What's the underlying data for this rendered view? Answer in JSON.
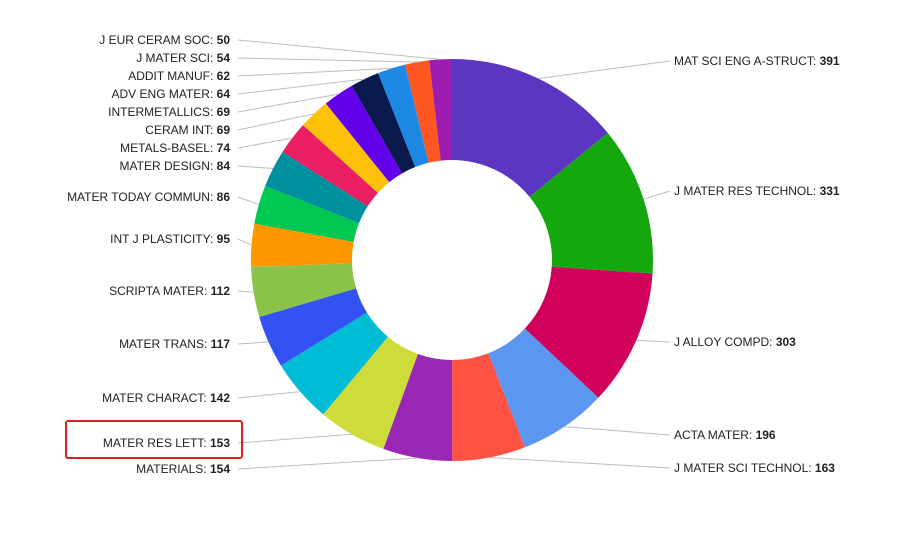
{
  "chart_data": {
    "type": "pie",
    "style": "donut",
    "categories": [
      "MAT SCI ENG A-STRUCT",
      "J MATER RES TECHNOL",
      "J ALLOY COMPD",
      "ACTA MATER",
      "J MATER SCI TECHNOL",
      "MATERIALS",
      "MATER RES LETT",
      "MATER CHARACT",
      "MATER TRANS",
      "SCRIPTA MATER",
      "INT J PLASTICITY",
      "MATER TODAY COMMUN",
      "MATER DESIGN",
      "METALS-BASEL",
      "CERAM INT",
      "INTERMETALLICS",
      "ADV ENG MATER",
      "ADDIT MANUF",
      "J MATER SCI",
      "J EUR CERAM SOC"
    ],
    "values": [
      391,
      331,
      303,
      196,
      163,
      154,
      153,
      142,
      117,
      112,
      95,
      86,
      84,
      74,
      69,
      69,
      64,
      62,
      54,
      50
    ],
    "colors": [
      "#5c35c0",
      "#14a80e",
      "#d1005a",
      "#5b96f0",
      "#ff5243",
      "#9a27b3",
      "#cddc3b",
      "#00bcd4",
      "#3451f4",
      "#8bc34a",
      "#ff9800",
      "#00c853",
      "#00909e",
      "#e91e63",
      "#ffc107",
      "#6200ea",
      "#0a1a4c",
      "#1e88e5",
      "#ff5722",
      "#9c1cb0"
    ],
    "label_separator": ": ",
    "highlighted": "MATER RES LETT",
    "highlight_color": "#e0201c"
  }
}
